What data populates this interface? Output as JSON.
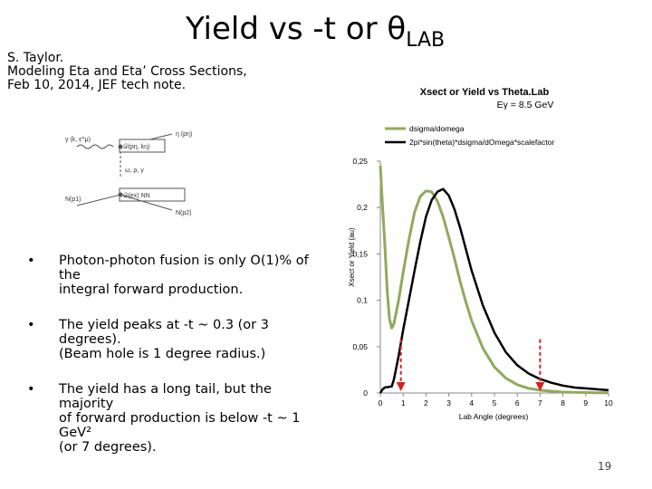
{
  "slide": {
    "title_main": "Yield vs -t or θ",
    "title_sub": "LAB",
    "credit": [
      "S. Taylor.",
      "Modeling Eta and Eta’ Cross Sections,",
      "Feb 10, 2014, JEF tech note."
    ],
    "bullets": [
      [
        "Photon-photon fusion is only O(1)% of the",
        "integral forward production."
      ],
      [
        "The yield peaks at -t ~ 0.3 (or 3 degrees).",
        "(Beam hole is 1 degree radius.)"
      ],
      [
        "The yield has a long tail, but the majority",
        "of forward production is below -t ~ 1 GeV²",
        "(or 7 degrees)."
      ]
    ],
    "bullet_symbol": "•",
    "page_number": "19"
  },
  "diagram": {
    "labels": {
      "gamma": "γ (k, ε^μ)",
      "eta": "η (pη)",
      "top_box": "𝒟(pη, kη)",
      "vertex": "ω, ρ, γ",
      "bottom_box": "𝒟(ex) NN",
      "nucleon_in": "N(p1)",
      "nucleon_out": "N(p2)"
    }
  },
  "chart_data": {
    "type": "line",
    "title": "Xsect or Yield vs Theta.Lab",
    "subtitle": "Eγ = 8.5 GeV",
    "xlabel": "Lab Angle (degrees)",
    "ylabel": "Xsect or Yield (au)",
    "xlim": [
      0,
      10
    ],
    "ylim": [
      0,
      0.25
    ],
    "x_ticks": [
      "0",
      "1",
      "2",
      "3",
      "4",
      "5",
      "6",
      "7",
      "8",
      "9",
      "10"
    ],
    "y_ticks": [
      "0",
      "0,05",
      "0,1",
      "0,15",
      "0,2",
      "0,25"
    ],
    "legend_position": "top-right",
    "series": [
      {
        "name": "dsigma/domega",
        "color": "#8faa5c",
        "x": [
          0,
          0.1,
          0.2,
          0.3,
          0.4,
          0.5,
          0.6,
          0.8,
          1.0,
          1.25,
          1.5,
          1.75,
          2.0,
          2.25,
          2.5,
          2.75,
          3.0,
          3.25,
          3.5,
          3.75,
          4.0,
          4.5,
          5.0,
          5.5,
          6.0,
          6.5,
          7.0,
          7.5,
          8.0,
          8.5,
          9.0,
          9.5,
          10.0
        ],
        "y": [
          0.245,
          0.2,
          0.16,
          0.11,
          0.08,
          0.07,
          0.075,
          0.1,
          0.13,
          0.165,
          0.195,
          0.212,
          0.218,
          0.217,
          0.207,
          0.19,
          0.168,
          0.145,
          0.12,
          0.098,
          0.078,
          0.048,
          0.028,
          0.016,
          0.009,
          0.005,
          0.003,
          0.002,
          0.001,
          0.0008,
          0.0005,
          0.0003,
          0.0002
        ]
      },
      {
        "name": "2pi*sin(theta)*dsigma/dOmega*scalefactor",
        "color": "#000000",
        "x": [
          0,
          0.1,
          0.2,
          0.5,
          0.6,
          0.8,
          1.0,
          1.25,
          1.5,
          1.75,
          2.0,
          2.25,
          2.5,
          2.75,
          3.0,
          3.25,
          3.5,
          3.75,
          4.0,
          4.5,
          5.0,
          5.5,
          6.0,
          6.5,
          7.0,
          7.5,
          8.0,
          8.5,
          9.0,
          9.5,
          10.0
        ],
        "y": [
          0.0,
          0.004,
          0.006,
          0.007,
          0.015,
          0.04,
          0.068,
          0.1,
          0.132,
          0.163,
          0.19,
          0.208,
          0.217,
          0.22,
          0.213,
          0.198,
          0.178,
          0.155,
          0.132,
          0.094,
          0.065,
          0.044,
          0.03,
          0.021,
          0.015,
          0.011,
          0.008,
          0.006,
          0.005,
          0.004,
          0.003
        ]
      }
    ],
    "markers": [
      {
        "x": 0.9,
        "color": "#d62020",
        "style": "dashed-arrow"
      },
      {
        "x": 7.0,
        "color": "#d62020",
        "style": "dashed-arrow"
      }
    ]
  }
}
